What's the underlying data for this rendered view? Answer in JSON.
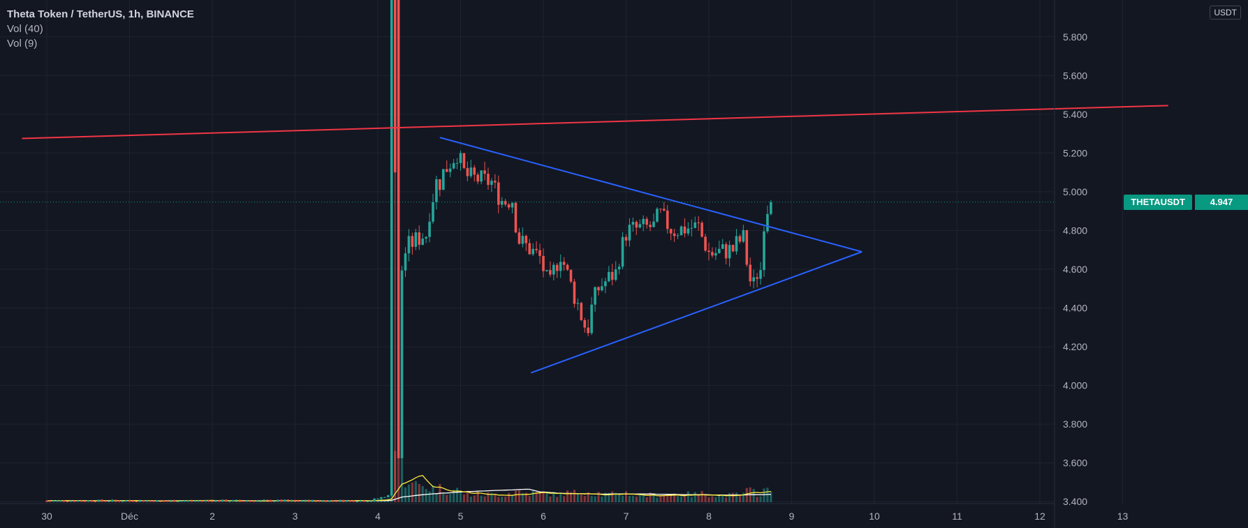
{
  "legend": {
    "title": "Theta Token / TetherUS, 1h, BINANCE",
    "vol40": "Vol (40)",
    "vol9": "Vol (9)"
  },
  "currency": "USDT",
  "price_tag": {
    "symbol": "THETAUSDT",
    "value": "4.947",
    "color": "#089981"
  },
  "colors": {
    "background": "#131722",
    "grid": "#1f2330",
    "up": "#26a69a",
    "down": "#ef5350",
    "triangle": "#2962ff",
    "resistance": "#f23645",
    "vol_ma_slow": "#ffffff",
    "vol_ma_fast": "#ffeb3b"
  },
  "chart_data": {
    "type": "candlestick",
    "title": "Theta Token / TetherUS, 1h, BINANCE",
    "y_axis": {
      "ticks": [
        "5.800",
        "5.600",
        "5.400",
        "5.200",
        "5.000",
        "4.800",
        "4.600",
        "4.400",
        "4.200",
        "4.000",
        "3.800",
        "3.600",
        "3.400"
      ],
      "range": [
        3.39,
        5.99
      ],
      "unit": "USDT"
    },
    "x_axis": {
      "ticks": [
        "30",
        "Déc",
        "2",
        "3",
        "4",
        "5",
        "6",
        "7",
        "8",
        "9",
        "10",
        "11",
        "12",
        "13"
      ],
      "range_days": [
        -0.3,
        13.55
      ]
    },
    "last_price": 4.947,
    "segments": [
      {
        "from_day": 0.0,
        "to_day": 3.95,
        "start": 3.405,
        "end": 3.405,
        "vol": 0.002
      },
      {
        "from_day": 3.95,
        "to_day": 4.15,
        "start": 3.405,
        "end": 3.43,
        "vol": 0.004
      },
      {
        "from_day": 4.15,
        "to_day": 4.22,
        "start": 3.43,
        "end": 6.3,
        "vol": 0.02
      },
      {
        "from_day": 4.22,
        "to_day": 4.25,
        "start": 6.3,
        "end": 3.6,
        "vol": 0.06
      },
      {
        "from_day": 4.25,
        "to_day": 4.3,
        "start": 3.6,
        "end": 4.6,
        "vol": 0.05
      },
      {
        "from_day": 4.3,
        "to_day": 4.4,
        "start": 4.6,
        "end": 4.72,
        "vol": 0.03
      },
      {
        "from_day": 4.4,
        "to_day": 4.6,
        "start": 4.72,
        "end": 4.78,
        "vol": 0.022
      },
      {
        "from_day": 4.6,
        "to_day": 4.75,
        "start": 4.78,
        "end": 5.05,
        "vol": 0.018
      },
      {
        "from_day": 4.75,
        "to_day": 5.0,
        "start": 5.05,
        "end": 5.2,
        "vol": 0.016
      },
      {
        "from_day": 5.0,
        "to_day": 5.1,
        "start": 5.2,
        "end": 5.08,
        "vol": 0.012
      },
      {
        "from_day": 5.1,
        "to_day": 5.4,
        "start": 5.08,
        "end": 5.05,
        "vol": 0.01
      },
      {
        "from_day": 5.4,
        "to_day": 5.55,
        "start": 5.05,
        "end": 4.95,
        "vol": 0.01
      },
      {
        "from_day": 5.55,
        "to_day": 5.65,
        "start": 4.95,
        "end": 4.96,
        "vol": 0.012
      },
      {
        "from_day": 5.65,
        "to_day": 5.75,
        "start": 4.96,
        "end": 4.75,
        "vol": 0.014
      },
      {
        "from_day": 5.75,
        "to_day": 6.0,
        "start": 4.75,
        "end": 4.66,
        "vol": 0.012
      },
      {
        "from_day": 6.0,
        "to_day": 6.1,
        "start": 4.66,
        "end": 4.52,
        "vol": 0.012
      },
      {
        "from_day": 6.1,
        "to_day": 6.25,
        "start": 4.52,
        "end": 4.68,
        "vol": 0.01
      },
      {
        "from_day": 6.25,
        "to_day": 6.45,
        "start": 4.68,
        "end": 4.42,
        "vol": 0.012
      },
      {
        "from_day": 6.45,
        "to_day": 6.55,
        "start": 4.42,
        "end": 4.3,
        "vol": 0.014
      },
      {
        "from_day": 6.55,
        "to_day": 6.7,
        "start": 4.3,
        "end": 4.5,
        "vol": 0.012
      },
      {
        "from_day": 6.7,
        "to_day": 6.9,
        "start": 4.5,
        "end": 4.58,
        "vol": 0.01
      },
      {
        "from_day": 6.9,
        "to_day": 7.05,
        "start": 4.58,
        "end": 4.8,
        "vol": 0.012
      },
      {
        "from_day": 7.05,
        "to_day": 7.35,
        "start": 4.8,
        "end": 4.82,
        "vol": 0.009
      },
      {
        "from_day": 7.35,
        "to_day": 7.45,
        "start": 4.82,
        "end": 4.88,
        "vol": 0.01
      },
      {
        "from_day": 7.45,
        "to_day": 7.6,
        "start": 4.88,
        "end": 4.8,
        "vol": 0.011
      },
      {
        "from_day": 7.6,
        "to_day": 7.9,
        "start": 4.8,
        "end": 4.82,
        "vol": 0.01
      },
      {
        "from_day": 7.9,
        "to_day": 8.05,
        "start": 4.82,
        "end": 4.68,
        "vol": 0.011
      },
      {
        "from_day": 8.05,
        "to_day": 8.3,
        "start": 4.68,
        "end": 4.7,
        "vol": 0.009
      },
      {
        "from_day": 8.3,
        "to_day": 8.45,
        "start": 4.7,
        "end": 4.76,
        "vol": 0.01
      },
      {
        "from_day": 8.45,
        "to_day": 8.55,
        "start": 4.76,
        "end": 4.52,
        "vol": 0.014
      },
      {
        "from_day": 8.55,
        "to_day": 8.65,
        "start": 4.52,
        "end": 4.6,
        "vol": 0.012
      },
      {
        "from_day": 8.65,
        "to_day": 8.7,
        "start": 4.6,
        "end": 4.85,
        "vol": 0.016
      },
      {
        "from_day": 8.7,
        "to_day": 8.77,
        "start": 4.85,
        "end": 4.947,
        "vol": 0.014
      }
    ],
    "drawings": {
      "resistance_line": {
        "from": {
          "day": -0.3,
          "price": 5.275
        },
        "to": {
          "day": 13.55,
          "price": 5.445
        }
      },
      "triangle_upper": {
        "from": {
          "day": 4.75,
          "price": 5.28
        },
        "to": {
          "day": 9.85,
          "price": 4.69
        }
      },
      "triangle_lower": {
        "from": {
          "day": 5.85,
          "price": 4.065
        },
        "to": {
          "day": 9.85,
          "price": 4.69
        }
      }
    }
  }
}
